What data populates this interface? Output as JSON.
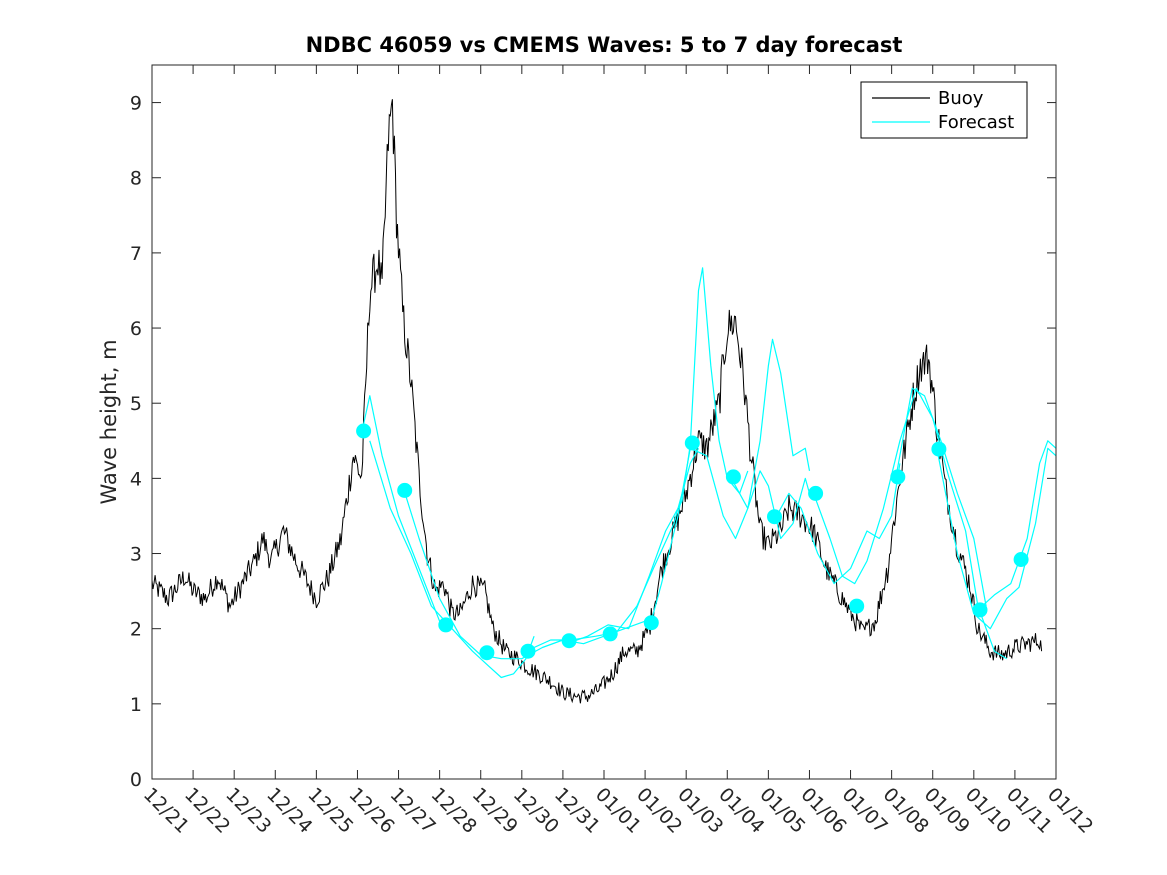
{
  "chart_data": {
    "type": "line",
    "title": "NDBC 46059 vs CMEMS Waves: 5 to 7 day forecast",
    "xlabel": "",
    "ylabel": "Wave height, m",
    "ylim": [
      0,
      9.5
    ],
    "yticks": [
      0,
      1,
      2,
      3,
      4,
      5,
      6,
      7,
      8,
      9
    ],
    "xlim": [
      0,
      22
    ],
    "xticks": [
      0,
      1,
      2,
      3,
      4,
      5,
      6,
      7,
      8,
      9,
      10,
      11,
      12,
      13,
      14,
      15,
      16,
      17,
      18,
      19,
      20,
      21,
      22
    ],
    "xtick_labels": [
      "12/21",
      "12/22",
      "12/23",
      "12/24",
      "12/25",
      "12/26",
      "12/27",
      "12/28",
      "12/29",
      "12/30",
      "12/31",
      "01/01",
      "01/02",
      "01/03",
      "01/04",
      "01/05",
      "01/06",
      "01/07",
      "01/08",
      "01/09",
      "01/10",
      "01/11",
      "01/12"
    ],
    "legend": {
      "position": "top-right",
      "entries": [
        {
          "label": "Buoy",
          "color": "#000000"
        },
        {
          "label": "Forecast",
          "color": "#00FFFF"
        }
      ]
    },
    "colors": {
      "buoy": "#000000",
      "forecast": "#00FFFF",
      "marker": "#00FFFF"
    },
    "buoy_key": [
      [
        0,
        2.6
      ],
      [
        0.4,
        2.4
      ],
      [
        0.8,
        2.7
      ],
      [
        1.0,
        2.5
      ],
      [
        1.3,
        2.4
      ],
      [
        1.6,
        2.7
      ],
      [
        1.9,
        2.3
      ],
      [
        2.2,
        2.6
      ],
      [
        2.5,
        2.9
      ],
      [
        2.7,
        3.2
      ],
      [
        2.9,
        2.9
      ],
      [
        3.2,
        3.3
      ],
      [
        3.5,
        2.9
      ],
      [
        3.8,
        2.6
      ],
      [
        4.0,
        2.4
      ],
      [
        4.3,
        2.7
      ],
      [
        4.6,
        3.2
      ],
      [
        4.9,
        4.3
      ],
      [
        5.1,
        4.0
      ],
      [
        5.2,
        5.2
      ],
      [
        5.3,
        6.5
      ],
      [
        5.5,
        6.9
      ],
      [
        5.6,
        6.5
      ],
      [
        5.75,
        8.5
      ],
      [
        5.85,
        9.0
      ],
      [
        5.95,
        7.5
      ],
      [
        6.1,
        6.2
      ],
      [
        6.3,
        5.3
      ],
      [
        6.5,
        4.0
      ],
      [
        6.7,
        3.0
      ],
      [
        6.9,
        2.5
      ],
      [
        7.1,
        2.6
      ],
      [
        7.3,
        2.2
      ],
      [
        7.5,
        2.2
      ],
      [
        7.8,
        2.6
      ],
      [
        8.1,
        2.5
      ],
      [
        8.3,
        2.0
      ],
      [
        8.6,
        1.7
      ],
      [
        8.9,
        1.6
      ],
      [
        9.1,
        1.5
      ],
      [
        9.4,
        1.4
      ],
      [
        9.7,
        1.3
      ],
      [
        10.0,
        1.15
      ],
      [
        10.3,
        1.1
      ],
      [
        10.6,
        1.1
      ],
      [
        10.9,
        1.2
      ],
      [
        11.2,
        1.4
      ],
      [
        11.5,
        1.7
      ],
      [
        11.8,
        1.7
      ],
      [
        12.1,
        2.0
      ],
      [
        12.4,
        2.8
      ],
      [
        12.7,
        3.3
      ],
      [
        13.0,
        3.8
      ],
      [
        13.3,
        4.5
      ],
      [
        13.5,
        4.4
      ],
      [
        13.8,
        5.0
      ],
      [
        14.0,
        6.0
      ],
      [
        14.2,
        6.1
      ],
      [
        14.4,
        5.3
      ],
      [
        14.6,
        4.2
      ],
      [
        14.8,
        3.3
      ],
      [
        15.0,
        3.1
      ],
      [
        15.3,
        3.3
      ],
      [
        15.5,
        3.6
      ],
      [
        15.8,
        3.5
      ],
      [
        16.1,
        3.3
      ],
      [
        16.4,
        2.8
      ],
      [
        16.7,
        2.5
      ],
      [
        17.0,
        2.2
      ],
      [
        17.3,
        1.95
      ],
      [
        17.6,
        2.1
      ],
      [
        17.9,
        2.8
      ],
      [
        18.2,
        4.0
      ],
      [
        18.5,
        5.0
      ],
      [
        18.7,
        5.5
      ],
      [
        18.9,
        5.6
      ],
      [
        19.1,
        4.7
      ],
      [
        19.3,
        3.9
      ],
      [
        19.6,
        3.1
      ],
      [
        19.9,
        2.6
      ],
      [
        20.1,
        2.0
      ],
      [
        20.4,
        1.7
      ],
      [
        20.7,
        1.65
      ],
      [
        21.0,
        1.75
      ],
      [
        21.3,
        1.8
      ],
      [
        21.6,
        1.85
      ],
      [
        21.65,
        1.7
      ]
    ],
    "forecast_segments": [
      [
        [
          5.1,
          4.6
        ],
        [
          5.3,
          5.1
        ],
        [
          5.6,
          4.3
        ],
        [
          6.0,
          3.5
        ],
        [
          6.5,
          2.8
        ],
        [
          7.0,
          2.1
        ],
        [
          7.3,
          2.1
        ]
      ],
      [
        [
          5.3,
          4.5
        ],
        [
          5.8,
          3.6
        ],
        [
          6.3,
          3.0
        ],
        [
          6.8,
          2.3
        ],
        [
          7.3,
          2.0
        ],
        [
          7.8,
          1.7
        ],
        [
          8.2,
          1.5
        ],
        [
          8.5,
          1.35
        ],
        [
          8.8,
          1.4
        ],
        [
          9.1,
          1.6
        ],
        [
          9.3,
          1.9
        ]
      ],
      [
        [
          6.1,
          3.9
        ],
        [
          6.5,
          3.2
        ],
        [
          7.0,
          2.4
        ],
        [
          7.5,
          1.9
        ],
        [
          8.0,
          1.65
        ],
        [
          8.5,
          1.6
        ],
        [
          9.0,
          1.6
        ],
        [
          9.5,
          1.75
        ],
        [
          10.0,
          1.85
        ],
        [
          10.5,
          1.8
        ],
        [
          11.0,
          1.9
        ],
        [
          11.5,
          2.0
        ],
        [
          12.0,
          2.1
        ]
      ],
      [
        [
          9.1,
          1.7
        ],
        [
          9.7,
          1.85
        ],
        [
          10.2,
          1.85
        ],
        [
          10.8,
          1.9
        ],
        [
          11.3,
          1.95
        ],
        [
          11.8,
          2.3
        ],
        [
          12.2,
          2.8
        ],
        [
          12.7,
          3.4
        ],
        [
          13.1,
          4.2
        ],
        [
          13.3,
          4.4
        ]
      ],
      [
        [
          10.1,
          1.8
        ],
        [
          10.6,
          1.9
        ],
        [
          11.1,
          2.05
        ],
        [
          11.6,
          2.0
        ],
        [
          12.1,
          2.7
        ],
        [
          12.5,
          3.3
        ],
        [
          12.9,
          3.7
        ],
        [
          13.1,
          4.45
        ],
        [
          13.3,
          6.5
        ],
        [
          13.4,
          6.8
        ],
        [
          13.6,
          5.5
        ],
        [
          13.8,
          4.5
        ],
        [
          14.0,
          4.0
        ],
        [
          14.3,
          3.8
        ],
        [
          14.5,
          4.1
        ]
      ],
      [
        [
          12.1,
          2.0
        ],
        [
          12.4,
          2.6
        ],
        [
          12.8,
          3.5
        ],
        [
          13.1,
          4.4
        ],
        [
          13.5,
          4.3
        ],
        [
          13.9,
          3.5
        ],
        [
          14.2,
          3.2
        ],
        [
          14.5,
          3.6
        ],
        [
          14.8,
          4.1
        ],
        [
          15.0,
          3.9
        ],
        [
          15.3,
          3.2
        ],
        [
          15.6,
          3.4
        ],
        [
          15.9,
          4.0
        ],
        [
          16.0,
          3.8
        ]
      ],
      [
        [
          14.1,
          4.0
        ],
        [
          14.5,
          3.6
        ],
        [
          14.8,
          4.5
        ],
        [
          15.0,
          5.5
        ],
        [
          15.1,
          5.85
        ],
        [
          15.3,
          5.4
        ],
        [
          15.6,
          4.3
        ],
        [
          15.9,
          4.4
        ],
        [
          16.0,
          4.1
        ]
      ],
      [
        [
          15.1,
          3.4
        ],
        [
          15.5,
          3.8
        ],
        [
          15.8,
          3.6
        ],
        [
          16.2,
          3.0
        ],
        [
          16.6,
          2.6
        ],
        [
          17.0,
          2.8
        ],
        [
          17.4,
          3.3
        ],
        [
          17.7,
          3.2
        ],
        [
          18.0,
          3.5
        ],
        [
          18.2,
          4.2
        ]
      ],
      [
        [
          16.1,
          3.8
        ],
        [
          16.5,
          3.2
        ],
        [
          16.8,
          2.7
        ],
        [
          17.1,
          2.6
        ],
        [
          17.4,
          2.9
        ],
        [
          17.8,
          3.6
        ],
        [
          18.2,
          4.5
        ],
        [
          18.6,
          5.2
        ],
        [
          19.0,
          4.8
        ],
        [
          19.4,
          4.0
        ],
        [
          19.8,
          3.3
        ],
        [
          20.1,
          2.3
        ],
        [
          20.5,
          1.7
        ],
        [
          20.8,
          1.6
        ]
      ],
      [
        [
          18.1,
          4.0
        ],
        [
          18.5,
          5.2
        ],
        [
          18.8,
          5.1
        ],
        [
          19.2,
          4.5
        ],
        [
          19.6,
          3.8
        ],
        [
          20.0,
          3.2
        ],
        [
          20.3,
          2.3
        ]
      ],
      [
        [
          19.1,
          4.4
        ],
        [
          19.6,
          3.0
        ],
        [
          20.0,
          2.2
        ],
        [
          20.4,
          2.0
        ],
        [
          20.8,
          2.4
        ],
        [
          21.1,
          2.55
        ],
        [
          21.5,
          3.4
        ],
        [
          21.8,
          4.4
        ],
        [
          22.0,
          4.3
        ]
      ],
      [
        [
          20.1,
          2.25
        ],
        [
          20.5,
          2.45
        ],
        [
          20.9,
          2.6
        ],
        [
          21.3,
          3.2
        ],
        [
          21.6,
          4.2
        ],
        [
          21.8,
          4.5
        ],
        [
          22.0,
          4.4
        ]
      ]
    ],
    "markers": [
      [
        5.15,
        4.63
      ],
      [
        6.15,
        3.84
      ],
      [
        7.15,
        2.05
      ],
      [
        8.15,
        1.68
      ],
      [
        9.15,
        1.7
      ],
      [
        10.15,
        1.84
      ],
      [
        11.15,
        1.93
      ],
      [
        12.15,
        2.08
      ],
      [
        13.15,
        4.47
      ],
      [
        14.15,
        4.02
      ],
      [
        15.15,
        3.49
      ],
      [
        16.15,
        3.8
      ],
      [
        17.15,
        2.3
      ],
      [
        18.15,
        4.02
      ],
      [
        19.15,
        4.39
      ],
      [
        20.15,
        2.25
      ],
      [
        21.15,
        2.92
      ]
    ]
  }
}
